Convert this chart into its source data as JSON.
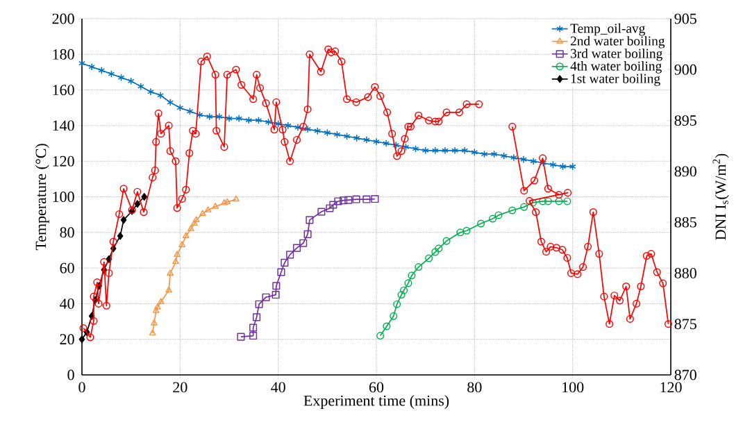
{
  "chart_data": {
    "type": "line",
    "xlabel": "Experiment time (mins)",
    "ylabel": "Temperature (°C)",
    "y2label": "DNI  I$_{s}$(W/m$^{2}$)",
    "xlim": [
      0,
      120
    ],
    "xticks": [
      0,
      20,
      40,
      60,
      80,
      100,
      120
    ],
    "ylim": [
      0,
      200
    ],
    "yticks": [
      0,
      20,
      40,
      60,
      80,
      100,
      120,
      140,
      160,
      180,
      200
    ],
    "y2lim": [
      870,
      905
    ],
    "y2ticks": [
      870,
      875,
      880,
      885,
      890,
      895,
      900,
      905
    ],
    "grid": true,
    "legend": "top right",
    "series": [
      {
        "name": "Temp_oil-avg",
        "color": "#0070c0",
        "marker": "cross",
        "x": [
          0,
          2,
          4,
          6,
          8,
          10,
          12,
          14,
          16,
          18,
          20,
          22,
          24,
          26,
          28,
          30,
          32,
          34,
          36,
          38,
          40,
          42,
          44,
          46,
          48,
          50,
          52,
          54,
          56,
          58,
          60,
          62,
          64,
          66,
          68,
          70,
          72,
          74,
          76,
          78,
          80,
          82,
          84,
          86,
          88,
          90,
          92,
          94,
          96,
          98,
          100
        ],
        "values": [
          175,
          173,
          171,
          169,
          167,
          165,
          162,
          159,
          157,
          153,
          150,
          148,
          146,
          145,
          145,
          144,
          144,
          143,
          143,
          142,
          141,
          140,
          139,
          138,
          137,
          136,
          135,
          134,
          133,
          132,
          131,
          130,
          129,
          128,
          127,
          126,
          126,
          126,
          126,
          126,
          125,
          124,
          124,
          123,
          122,
          121,
          120,
          119,
          118,
          117,
          117
        ]
      },
      {
        "name": "2nd water boiling",
        "color": "#f79646",
        "marker": "triangle",
        "x": [
          14.4,
          14.7,
          15.1,
          15.4,
          16.1,
          17.7,
          18,
          19.1,
          19.4,
          20.4,
          21.2,
          22.2,
          22.9,
          23.3,
          24.6,
          25.7,
          27.2,
          29,
          29.6,
          31.4
        ],
        "values": [
          23.4,
          29,
          36,
          38,
          41,
          47.5,
          57,
          63.5,
          67.5,
          73,
          78,
          82,
          85,
          87,
          90.5,
          92.5,
          94.5,
          96.5,
          97,
          98.6
        ]
      },
      {
        "name": "3rd water boiling",
        "color": "#7030a0",
        "marker": "square",
        "x": [
          32.4,
          34.9,
          34.9,
          35.6,
          36.1,
          37.5,
          39.5,
          39.6,
          40.6,
          41.3,
          42.4,
          43.8,
          45.1,
          46,
          46.4,
          48.8,
          50.5,
          51.2,
          52.2,
          53.3,
          54.3,
          55.9,
          58,
          59.7
        ],
        "values": [
          21.4,
          22,
          26.5,
          32.4,
          39.7,
          43.6,
          45,
          50,
          57.7,
          63,
          67.5,
          71.3,
          74,
          79,
          87,
          91.6,
          93.6,
          95.5,
          97.5,
          98,
          98.2,
          98.6,
          98.6,
          98.8
        ]
      },
      {
        "name": "4th water boiling",
        "color": "#00b050",
        "marker": "circle",
        "x": [
          60.8,
          62.1,
          63.5,
          64.2,
          65.1,
          65.6,
          66.5,
          67.2,
          68.6,
          70.7,
          72,
          72.7,
          74.3,
          77.1,
          78.4,
          81.3,
          83.7,
          84.9,
          87.7,
          90.1,
          91.9,
          93.9,
          95,
          97.2,
          98.9
        ],
        "values": [
          22,
          27.3,
          33,
          39.7,
          45,
          47.5,
          51.5,
          55.8,
          60.6,
          65.5,
          69,
          71,
          75.2,
          80,
          81,
          85,
          87.7,
          89.7,
          92.4,
          94.3,
          96.7,
          97.5,
          97.5,
          97.5,
          97.5
        ]
      },
      {
        "name": "1st water boiling",
        "color": "#000000",
        "marker": "diamond",
        "x": [
          0,
          1,
          2,
          2.7,
          3.5,
          4.5,
          5.5,
          6.4,
          7.8,
          8.5,
          10.2,
          11.3,
          12.7
        ],
        "values": [
          20,
          24,
          33,
          42,
          50,
          59,
          65,
          71,
          78,
          87,
          92,
          96,
          100
        ]
      },
      {
        "color": "#ff0000",
        "marker": "circle",
        "axis": "y2",
        "x": [
          0.3,
          1.7,
          2.4,
          2.4,
          3.1,
          3.4,
          4.5,
          5,
          5.5,
          6.4,
          7.6,
          8.5,
          10.2,
          11.3,
          12.6,
          14.4,
          14.9,
          15.1,
          15.6,
          16.1,
          17.7,
          18,
          19.1,
          19.4,
          20.4,
          21.2,
          21.9,
          22.6,
          23.2,
          24.3,
          25.5,
          27.2,
          27.4,
          29,
          29.6,
          31.4,
          32.5,
          34.9,
          35.6,
          36.3,
          37.5,
          39.2,
          39.6,
          40.9,
          41.3,
          42.4,
          43.8,
          45.1,
          46,
          46.4,
          48.7,
          50.2,
          50.8,
          51.6,
          52.9,
          54,
          55.9,
          58.3,
          59.7,
          60.8,
          62.2,
          63.2,
          64.2,
          65.1,
          65.8,
          66.5,
          67,
          68.6,
          70.7,
          72,
          72.7,
          74.3,
          76.9,
          78.4,
          80.9,
          84.3,
          87.7,
          90.1,
          92.2,
          93.9,
          95,
          97.2,
          99,
          91.2,
          92.5,
          93.6,
          94.6,
          95.5,
          96.7,
          97.9,
          98.9,
          99.7,
          101,
          102.1,
          103.1,
          104.2,
          105.4,
          106.4,
          107.5,
          108.5,
          109.6,
          110.9,
          111.7,
          113,
          113.9,
          115.1,
          116,
          117.2,
          118.4,
          119.5
        ],
        "values": [
          874.6,
          873.7,
          875.3,
          877.7,
          879.1,
          877,
          881.1,
          876.8,
          880,
          883.1,
          885.8,
          888.3,
          886.2,
          888,
          886,
          889.4,
          890.1,
          892.9,
          895.7,
          893.7,
          894.5,
          892,
          891,
          886.4,
          887.3,
          888.2,
          891.8,
          894,
          893.7,
          900.8,
          901.3,
          899.5,
          894,
          892.4,
          899.5,
          900,
          898.5,
          897.1,
          899.5,
          898.2,
          896.7,
          894.1,
          896.8,
          894.1,
          892.9,
          891,
          893.1,
          894.4,
          896.1,
          901.5,
          899.8,
          902,
          901.7,
          901.8,
          900.8,
          897.1,
          896.8,
          897.3,
          898.3,
          897.4,
          895.8,
          893.7,
          891.5,
          892,
          893.2,
          894.4,
          894.4,
          895.5,
          895,
          894.9,
          894.9,
          895.8,
          895.8,
          896.6,
          896.6,
          null,
          894.4,
          888.1,
          889.1,
          891.3,
          888.3,
          887.7,
          887.9,
          887.1,
          886,
          883.1,
          882.1,
          882.6,
          882.5,
          882.3,
          881.5,
          880,
          879.9,
          880.6,
          882.6,
          886,
          881.9,
          877.7,
          875,
          877.8,
          877.3,
          878.7,
          875.5,
          877,
          878.7,
          881.7,
          881.9,
          880.1,
          879,
          875
        ]
      }
    ]
  }
}
